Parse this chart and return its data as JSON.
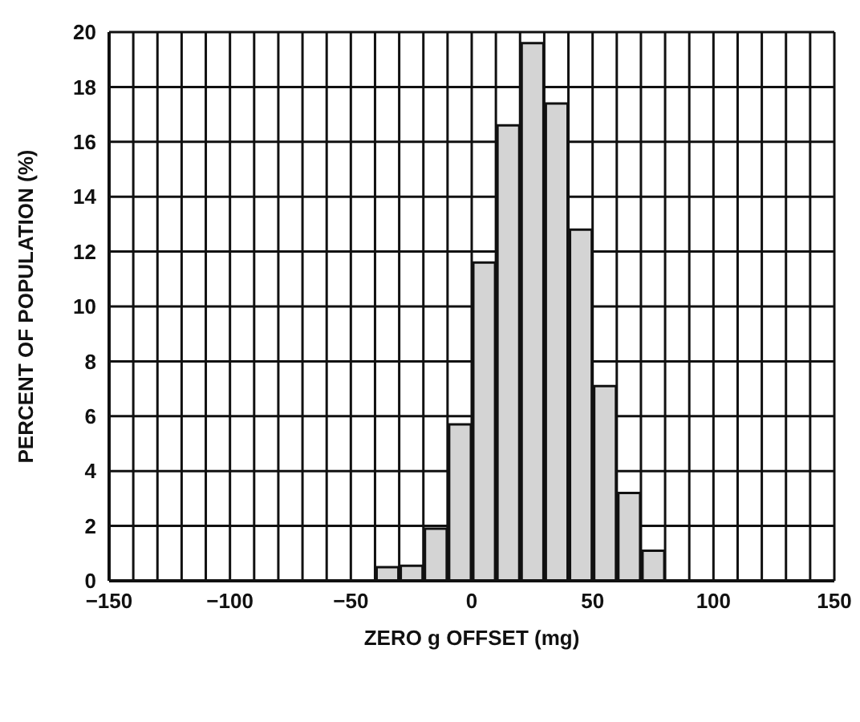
{
  "chart_data": {
    "type": "histogram",
    "xlabel": "ZERO g OFFSET (mg)",
    "ylabel": "PERCENT OF POPULATION (%)",
    "bins": [
      -40,
      -30,
      -20,
      -10,
      0,
      10,
      20,
      30,
      40,
      50,
      60,
      70,
      80
    ],
    "values": [
      0.5,
      0.55,
      1.9,
      5.7,
      11.6,
      16.6,
      19.6,
      17.4,
      12.8,
      7.1,
      3.2,
      1.1
    ],
    "color": "#d4d4d4",
    "xlim": [
      -150,
      150
    ],
    "xticks": [
      -150,
      {
        "value": -140,
        "label": null
      },
      {
        "value": -130,
        "label": null
      },
      {
        "value": -120,
        "label": null
      },
      {
        "value": -110,
        "label": null
      },
      -100,
      {
        "value": -90,
        "label": null
      },
      {
        "value": -80,
        "label": null
      },
      {
        "value": -70,
        "label": null
      },
      {
        "value": -60,
        "label": null
      },
      -50,
      {
        "value": -40,
        "label": null
      },
      {
        "value": -30,
        "label": null
      },
      {
        "value": -20,
        "label": null
      },
      {
        "value": -10,
        "label": null
      },
      0,
      {
        "value": 10,
        "label": null
      },
      {
        "value": 20,
        "label": null
      },
      {
        "value": 30,
        "label": null
      },
      {
        "value": 40,
        "label": null
      },
      50,
      {
        "value": 60,
        "label": null
      },
      {
        "value": 70,
        "label": null
      },
      {
        "value": 80,
        "label": null
      },
      {
        "value": 90,
        "label": null
      },
      100,
      {
        "value": 110,
        "label": null
      },
      {
        "value": 120,
        "label": null
      },
      {
        "value": 130,
        "label": null
      },
      {
        "value": 140,
        "label": null
      },
      150
    ],
    "ylim": [
      0,
      20
    ],
    "yticks": [
      0,
      2,
      4,
      6,
      8,
      10,
      12,
      14,
      16,
      18,
      20
    ],
    "grid": true
  }
}
